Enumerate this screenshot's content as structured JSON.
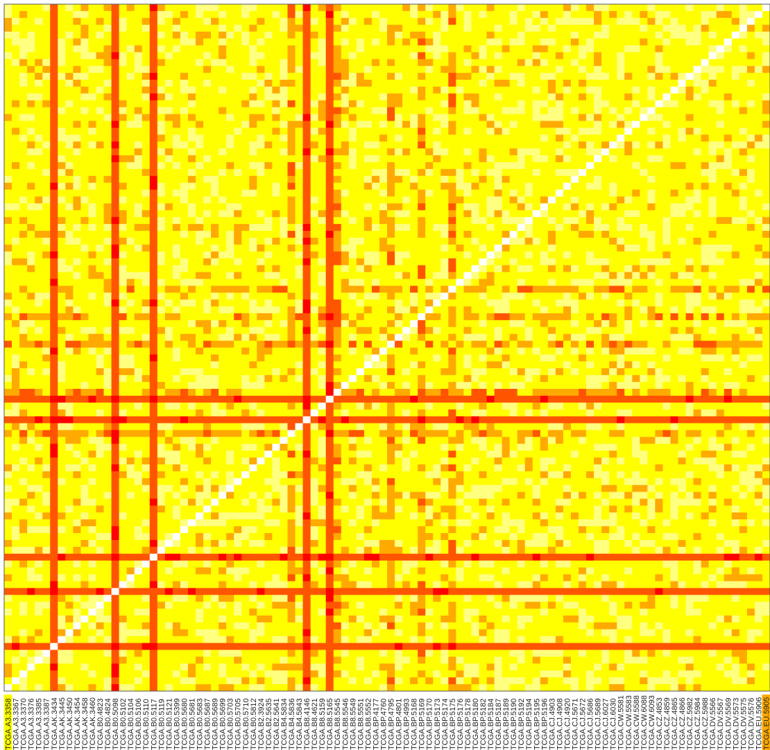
{
  "chart_data": {
    "type": "heatmap",
    "title": "",
    "xlabel": "",
    "ylabel": "",
    "grid": false,
    "legend": "none",
    "colors": {
      "lowest": "#ff0000",
      "low": "#ff5500",
      "mid": "#ffaa00",
      "high": "#ffff00",
      "higher": "#ffff80",
      "diagonal": "#ffffff"
    },
    "x_tick_labels": [
      "TCGA.A3.3358",
      "TCGA.A3.3367",
      "TCGA.A3.3370",
      "TCGA.A3.3376",
      "TCGA.A3.3385",
      "TCGA.A3.3387",
      "TCGA.AK.3434",
      "TCGA.AK.3445",
      "TCGA.AK.3450",
      "TCGA.AK.3454",
      "TCGA.AK.3458",
      "TCGA.AK.3460",
      "TCGA.B0.4823",
      "TCGA.B0.4824",
      "TCGA.B0.5098",
      "TCGA.B0.5102",
      "TCGA.B0.5104",
      "TCGA.B0.5106",
      "TCGA.B0.5110",
      "TCGA.B0.5117",
      "TCGA.B0.5119",
      "TCGA.B0.5121",
      "TCGA.B0.5399",
      "TCGA.B0.5680",
      "TCGA.B0.5681",
      "TCGA.B0.5683",
      "TCGA.B0.5687",
      "TCGA.B0.5689",
      "TCGA.B0.5699",
      "TCGA.B0.5703",
      "TCGA.B0.5705",
      "TCGA.B0.5710",
      "TCGA.B0.5812",
      "TCGA.B2.3924",
      "TCGA.B2.5635",
      "TCGA.B2.5641",
      "TCGA.B4.5834",
      "TCGA.B4.5836",
      "TCGA.B4.5843",
      "TCGA.B8.4146",
      "TCGA.B8.4621",
      "TCGA.B8.5159",
      "TCGA.B8.5165",
      "TCGA.B8.5545",
      "TCGA.B8.5546",
      "TCGA.B8.5549",
      "TCGA.B8.5551",
      "TCGA.B8.5552",
      "TCGA.BP.4177",
      "TCGA.BP.4760",
      "TCGA.BP.4795",
      "TCGA.BP.4801",
      "TCGA.BP.4993",
      "TCGA.BP.5168",
      "TCGA.BP.5169",
      "TCGA.BP.5170",
      "TCGA.BP.5173",
      "TCGA.BP.5174",
      "TCGA.BP.5175",
      "TCGA.BP.5176",
      "TCGA.BP.5178",
      "TCGA.BP.5180",
      "TCGA.BP.5182",
      "TCGA.BP.5184",
      "TCGA.BP.5187",
      "TCGA.BP.5189",
      "TCGA.BP.5190",
      "TCGA.BP.5192",
      "TCGA.BP.5194",
      "TCGA.BP.5195",
      "TCGA.BP.5196",
      "TCGA.CJ.4903",
      "TCGA.CJ.4908",
      "TCGA.CJ.4920",
      "TCGA.CJ.5671",
      "TCGA.CJ.5672",
      "TCGA.CJ.5686",
      "TCGA.CJ.5689",
      "TCGA.CJ.6027",
      "TCGA.CJ.6030",
      "TCGA.CW.5581",
      "TCGA.CW.5583",
      "TCGA.CW.5588",
      "TCGA.CW.6088",
      "TCGA.CW.6093",
      "TCGA.CZ.4853",
      "TCGA.CZ.4859",
      "TCGA.CZ.4865",
      "TCGA.CZ.4866",
      "TCGA.CZ.5982",
      "TCGA.CZ.5984",
      "TCGA.CZ.5988",
      "TCGA.DV.5566",
      "TCGA.DV.5567",
      "TCGA.DV.5569",
      "TCGA.DV.5573",
      "TCGA.DV.5575",
      "TCGA.DV.5576",
      "TCGA.EU.5906",
      "TCGA.EU.5905"
    ],
    "highlighted_labels": {
      "TCGA.A3.3358": "#ffff00",
      "TCGA.EU.5905": "#ffaa00"
    },
    "bands": [
      {
        "sample": "TCGA.AK.3434",
        "level": "low"
      },
      {
        "sample": "TCGA.B0.5098",
        "level": "low"
      },
      {
        "sample": "TCGA.B0.5117",
        "level": "low"
      },
      {
        "sample": "TCGA.B8.4146",
        "level": "low"
      },
      {
        "sample": "TCGA.B8.5165",
        "level": "low"
      },
      {
        "sample": "TCGA.B4.5836",
        "level": "mid"
      },
      {
        "sample": "TCGA.BP.5169",
        "level": "mid"
      },
      {
        "sample": "TCGA.BP.5175",
        "level": "mid"
      },
      {
        "sample": "TCGA.B8.5545",
        "level": "mid"
      },
      {
        "sample": "TCGA.BP.4795",
        "level": "mid"
      }
    ],
    "light_cells": [
      {
        "row": "TCGA.B8.5159",
        "col": "TCGA.B8.5159"
      }
    ]
  }
}
